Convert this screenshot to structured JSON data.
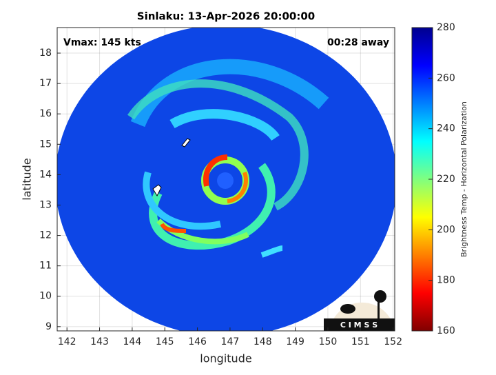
{
  "chart_data": {
    "type": "image",
    "title": "Sinlaku: 13-Apr-2026 20:00:00",
    "xlabel": "longitude",
    "ylabel": "latitude",
    "annotations": [
      "Vmax: 145 kts",
      "00:28 away"
    ],
    "logo": "C I M S S",
    "xlim": [
      141.7,
      152.05
    ],
    "ylim": [
      8.86,
      18.84
    ],
    "xticks": [
      142,
      143,
      144,
      145,
      146,
      147,
      148,
      149,
      150,
      151,
      152
    ],
    "yticks": [
      9,
      10,
      11,
      12,
      13,
      14,
      15,
      16,
      17,
      18
    ],
    "grid": true,
    "colorbar": {
      "label": "Brightness Temp - Horizontal Polarization",
      "colormap": "jet",
      "clim": [
        160,
        280
      ],
      "ticks": [
        160,
        180,
        200,
        220,
        240,
        260,
        280
      ]
    }
  }
}
